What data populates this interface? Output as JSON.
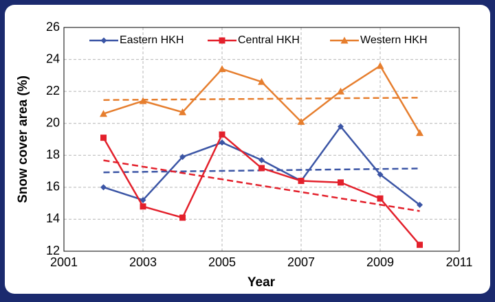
{
  "chart_data": {
    "type": "line",
    "x_label": "Year",
    "y_label": "Snow cover area (%)",
    "x": [
      2002,
      2003,
      2004,
      2005,
      2006,
      2007,
      2008,
      2009,
      2010
    ],
    "series": [
      {
        "name": "Eastern HKH",
        "color": "#3b55a5",
        "marker": "diamond",
        "trendline": true,
        "values": [
          16.0,
          15.2,
          17.9,
          18.8,
          17.7,
          16.4,
          19.8,
          16.8,
          14.9
        ]
      },
      {
        "name": "Central HKH",
        "color": "#e3202b",
        "marker": "square",
        "trendline": true,
        "values": [
          19.1,
          14.8,
          14.1,
          19.3,
          17.2,
          16.4,
          16.3,
          15.3,
          12.4
        ]
      },
      {
        "name": "Western HKH",
        "color": "#e67e2e",
        "marker": "triangle",
        "trendline": true,
        "values": [
          20.6,
          21.4,
          20.7,
          23.4,
          22.6,
          20.1,
          22.0,
          23.6,
          19.4
        ]
      }
    ],
    "xlim": [
      2001,
      2011
    ],
    "xticks": [
      2001,
      2003,
      2005,
      2007,
      2009,
      2011
    ],
    "ylim": [
      12,
      26
    ],
    "yticks": [
      12,
      14,
      16,
      18,
      20,
      22,
      24,
      26
    ],
    "grid": true,
    "legend": "top"
  }
}
